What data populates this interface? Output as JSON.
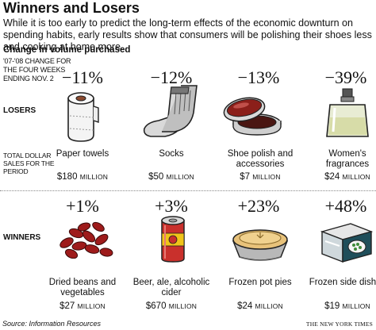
{
  "title": "Winners and Losers",
  "intro": "While it is too early to predict the long-term effects of the economic downturn on spending habits, early results show that consumers will be polishing their shoes less and cooking at home more.",
  "subhead": "Change in volume purchased",
  "period_label": "'07-'08 CHANGE FOR THE FOUR WEEKS ENDING NOV. 2",
  "losers_label": "LOSERS",
  "winners_label": "WINNERS",
  "total_label": "TOTAL DOLLAR SALES FOR THE PERIOD",
  "unit_label": "MILLION",
  "losers": [
    {
      "pct": "−11%",
      "name": "Paper towels",
      "sales": "$180",
      "icon": "paper-towel-roll-icon"
    },
    {
      "pct": "−12%",
      "name": "Socks",
      "sales": "$50",
      "icon": "socks-icon"
    },
    {
      "pct": "−13%",
      "name": "Shoe polish and accessories",
      "sales": "$7",
      "icon": "shoe-polish-tin-icon"
    },
    {
      "pct": "−39%",
      "name": "Women's fragrances",
      "sales": "$24",
      "icon": "perfume-bottle-icon"
    }
  ],
  "winners": [
    {
      "pct": "+1%",
      "name": "Dried beans and vegetables",
      "sales": "$27",
      "icon": "kidney-beans-icon"
    },
    {
      "pct": "+3%",
      "name": "Beer, ale, alcoholic cider",
      "sales": "$670",
      "icon": "beer-can-icon"
    },
    {
      "pct": "+23%",
      "name": "Frozen pot pies",
      "sales": "$24",
      "icon": "pot-pie-icon"
    },
    {
      "pct": "+48%",
      "name": "Frozen side dishes",
      "sales": "$19",
      "icon": "frozen-box-icon"
    }
  ],
  "source": "Source: Information Resources",
  "credit": "THE NEW YORK TIMES"
}
